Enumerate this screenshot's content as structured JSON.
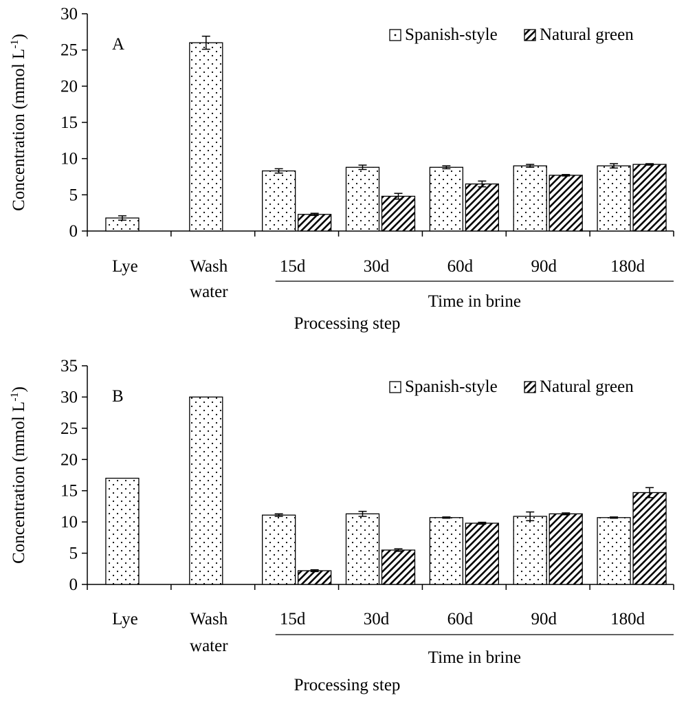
{
  "colors": {
    "axis": "#000000",
    "bar_fill": "#ffffff",
    "pattern_ink": "#000000"
  },
  "chart_data": [
    {
      "type": "bar",
      "panel_label": "A",
      "ylabel": "Concentration (mmol L",
      "ylabel_sup": "-1",
      "ylabel_close": ")",
      "xlabel": "Processing step",
      "group_label": "Time in brine",
      "ylim": [
        0,
        30
      ],
      "yticks": [
        0,
        5,
        10,
        15,
        20,
        25,
        30
      ],
      "categories": [
        [
          "Lye"
        ],
        [
          "Wash",
          "water"
        ],
        [
          "15d"
        ],
        [
          "30d"
        ],
        [
          "60d"
        ],
        [
          "90d"
        ],
        [
          "180d"
        ]
      ],
      "legend_position": "top-right",
      "series": [
        {
          "name": "Spanish-style",
          "pattern": "dots",
          "values": [
            1.8,
            26.0,
            8.3,
            8.8,
            8.8,
            9.0,
            9.0
          ],
          "errors": [
            0.3,
            0.9,
            0.3,
            0.3,
            0.2,
            0.2,
            0.3
          ]
        },
        {
          "name": "Natural green",
          "pattern": "hatch",
          "values": [
            null,
            null,
            2.3,
            4.8,
            6.5,
            7.7,
            9.2
          ],
          "errors": [
            null,
            null,
            0.15,
            0.4,
            0.4,
            0.1,
            0.1
          ]
        }
      ]
    },
    {
      "type": "bar",
      "panel_label": "B",
      "ylabel": "Concentration (mmol L",
      "ylabel_sup": "-1",
      "ylabel_close": ")",
      "xlabel": "Processing step",
      "group_label": "Time in brine",
      "ylim": [
        0,
        35
      ],
      "yticks": [
        0,
        5,
        10,
        15,
        20,
        25,
        30,
        35
      ],
      "categories": [
        [
          "Lye"
        ],
        [
          "Wash",
          "water"
        ],
        [
          "15d"
        ],
        [
          "30d"
        ],
        [
          "60d"
        ],
        [
          "90d"
        ],
        [
          "180d"
        ]
      ],
      "legend_position": "top-right",
      "series": [
        {
          "name": "Spanish-style",
          "pattern": "dots",
          "values": [
            17.0,
            30.0,
            11.1,
            11.3,
            10.7,
            10.9,
            10.7
          ],
          "errors": [
            0.0,
            0.0,
            0.2,
            0.4,
            0.1,
            0.7,
            0.1
          ]
        },
        {
          "name": "Natural green",
          "pattern": "hatch",
          "values": [
            null,
            null,
            2.2,
            5.5,
            9.8,
            11.3,
            14.7
          ],
          "errors": [
            null,
            null,
            0.15,
            0.2,
            0.15,
            0.15,
            0.8
          ]
        }
      ]
    }
  ]
}
